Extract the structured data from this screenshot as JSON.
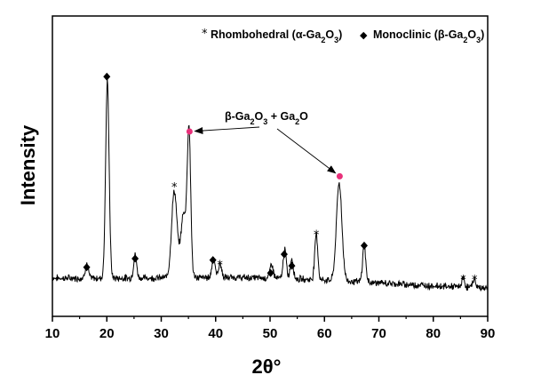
{
  "chart_data": {
    "type": "line",
    "title": "",
    "xlabel": "2θ°",
    "ylabel": "Intensity",
    "xlim": [
      10,
      90
    ],
    "x_ticks": [
      10,
      20,
      30,
      40,
      50,
      60,
      70,
      80,
      90
    ],
    "y_ticks_shown": false,
    "grid": false,
    "legend_position": "top-right",
    "legend": [
      {
        "marker": "*",
        "label": "Rhombohedral (α-Ga2O3)"
      },
      {
        "marker": "◆",
        "label": "Monoclinic (β-Ga2O3)"
      }
    ],
    "annotation": "β-Ga2O3 + Ga2O",
    "colors": {
      "trace": "#000000",
      "highlight_marker": "#e8307a"
    },
    "series": [
      {
        "profile_peaks": [
          {
            "x": 16.3,
            "height": 0.05
          },
          {
            "x": 20.1,
            "height": 0.68
          },
          {
            "x": 25.2,
            "height": 0.08
          },
          {
            "x": 32.4,
            "height": 0.3
          },
          {
            "x": 34.1,
            "height": 0.22
          },
          {
            "x": 35.1,
            "height": 0.5
          },
          {
            "x": 39.6,
            "height": 0.07
          },
          {
            "x": 40.8,
            "height": 0.05
          },
          {
            "x": 50.3,
            "height": 0.05
          },
          {
            "x": 52.7,
            "height": 0.1
          },
          {
            "x": 54.0,
            "height": 0.07
          },
          {
            "x": 58.5,
            "height": 0.16
          },
          {
            "x": 62.7,
            "height": 0.34
          },
          {
            "x": 67.3,
            "height": 0.13
          },
          {
            "x": 85.5,
            "height": 0.03
          },
          {
            "x": 87.5,
            "height": 0.03
          }
        ]
      }
    ],
    "markers": [
      {
        "symbol": "◆",
        "x": 16.3,
        "y": 0.09
      },
      {
        "symbol": "◆",
        "x": 20.0,
        "y": 0.75
      },
      {
        "symbol": "◆",
        "x": 25.2,
        "y": 0.12
      },
      {
        "symbol": "*",
        "x": 32.4,
        "y": 0.37
      },
      {
        "symbol": "●",
        "x": 35.2,
        "y": 0.56
      },
      {
        "symbol": "◆",
        "x": 39.5,
        "y": 0.115
      },
      {
        "symbol": "*",
        "x": 40.8,
        "y": 0.1
      },
      {
        "symbol": "◆",
        "x": 50.1,
        "y": 0.07
      },
      {
        "symbol": "◆",
        "x": 52.6,
        "y": 0.135
      },
      {
        "symbol": "◆",
        "x": 54.0,
        "y": 0.095
      },
      {
        "symbol": "*",
        "x": 58.5,
        "y": 0.205
      },
      {
        "symbol": "●",
        "x": 62.8,
        "y": 0.405
      },
      {
        "symbol": "◆",
        "x": 67.3,
        "y": 0.165
      },
      {
        "symbol": "*",
        "x": 85.5,
        "y": 0.05
      },
      {
        "symbol": "*",
        "x": 87.6,
        "y": 0.05
      }
    ],
    "arrows": [
      {
        "to_x": 35.2,
        "to_y": 0.56
      },
      {
        "to_x": 62.8,
        "to_y": 0.405
      }
    ]
  }
}
